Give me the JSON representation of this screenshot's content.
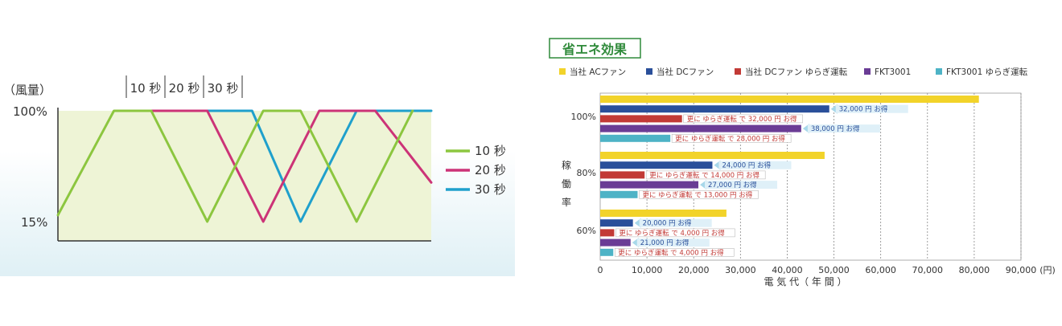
{
  "chart_data": [
    {
      "type": "line",
      "ylabel": "（風量）",
      "yticks": [
        "100%",
        "15%"
      ],
      "ylim": [
        15,
        100
      ],
      "period_labels": [
        "10 秒",
        "20 秒",
        "30 秒"
      ],
      "series": [
        {
          "name": "10 秒",
          "color": "#8cc63f",
          "points": [
            [
              0,
              20
            ],
            [
              1.5,
              100
            ],
            [
              2.5,
              100
            ],
            [
              4,
              15
            ],
            [
              5.5,
              100
            ],
            [
              6.5,
              100
            ],
            [
              8,
              15
            ],
            [
              9.5,
              100
            ]
          ]
        },
        {
          "name": "20 秒",
          "color": "#cc3377",
          "points": [
            [
              2.5,
              100
            ],
            [
              4,
              100
            ],
            [
              5.5,
              15
            ],
            [
              7,
              100
            ],
            [
              8.5,
              100
            ],
            [
              10,
              45
            ]
          ]
        },
        {
          "name": "30 秒",
          "color": "#1fa0cc",
          "points": [
            [
              4,
              100
            ],
            [
              5.2,
              100
            ],
            [
              6.5,
              15
            ],
            [
              8,
              100
            ],
            [
              10,
              100
            ]
          ]
        }
      ]
    },
    {
      "type": "bar",
      "title": "省エネ効果",
      "xlabel": "電 気 代（ 年 間 ）",
      "xunit": "(円)",
      "ylabel": "稼働率",
      "xlim": [
        0,
        90000
      ],
      "xticks": [
        "0",
        "10,000",
        "20,000",
        "30,000",
        "40,000",
        "50,000",
        "60,000",
        "70,000",
        "80,000",
        "90,000"
      ],
      "legend_position": "top",
      "categories": [
        "100%",
        "80%",
        "60%"
      ],
      "series": [
        {
          "name": "当社 ACファン",
          "color": "#f2d32a",
          "values": [
            81000,
            48000,
            27000
          ]
        },
        {
          "name": "当社 DCファン",
          "color": "#2a4f9a",
          "values": [
            49000,
            24000,
            7000
          ]
        },
        {
          "name": "当社 DCファン ゆらぎ運転",
          "color": "#c23a36",
          "values": [
            17500,
            9500,
            3000
          ]
        },
        {
          "name": "FKT3001",
          "color": "#6a3c95",
          "values": [
            43000,
            21000,
            6500
          ]
        },
        {
          "name": "FKT3001 ゆらぎ運転",
          "color": "#4db3c6",
          "values": [
            15000,
            8000,
            2800
          ]
        }
      ],
      "annotations": [
        [
          {
            "type": "plain",
            "text": "32,000 円 お得"
          },
          {
            "type": "boxed",
            "text": "更に ゆらぎ運転 で 32,000 円 お得"
          },
          {
            "type": "plain",
            "text": "38,000 円 お得"
          },
          {
            "type": "boxed",
            "text": "更に ゆらぎ運転 で 28,000 円 お得"
          }
        ],
        [
          {
            "type": "plain",
            "text": "24,000 円 お得"
          },
          {
            "type": "boxed",
            "text": "更に ゆらぎ運転 で 14,000 円 お得"
          },
          {
            "type": "plain",
            "text": "27,000 円 お得"
          },
          {
            "type": "boxed",
            "text": "更に ゆらぎ運転 で 13,000 円 お得"
          }
        ],
        [
          {
            "type": "plain",
            "text": "20,000 円 お得"
          },
          {
            "type": "boxed",
            "text": "更に ゆらぎ運転 で 4,000 円 お得"
          },
          {
            "type": "plain",
            "text": "21,000 円 お得"
          },
          {
            "type": "boxed",
            "text": "更に ゆらぎ運転 で 4,000 円 お得"
          }
        ]
      ]
    }
  ]
}
